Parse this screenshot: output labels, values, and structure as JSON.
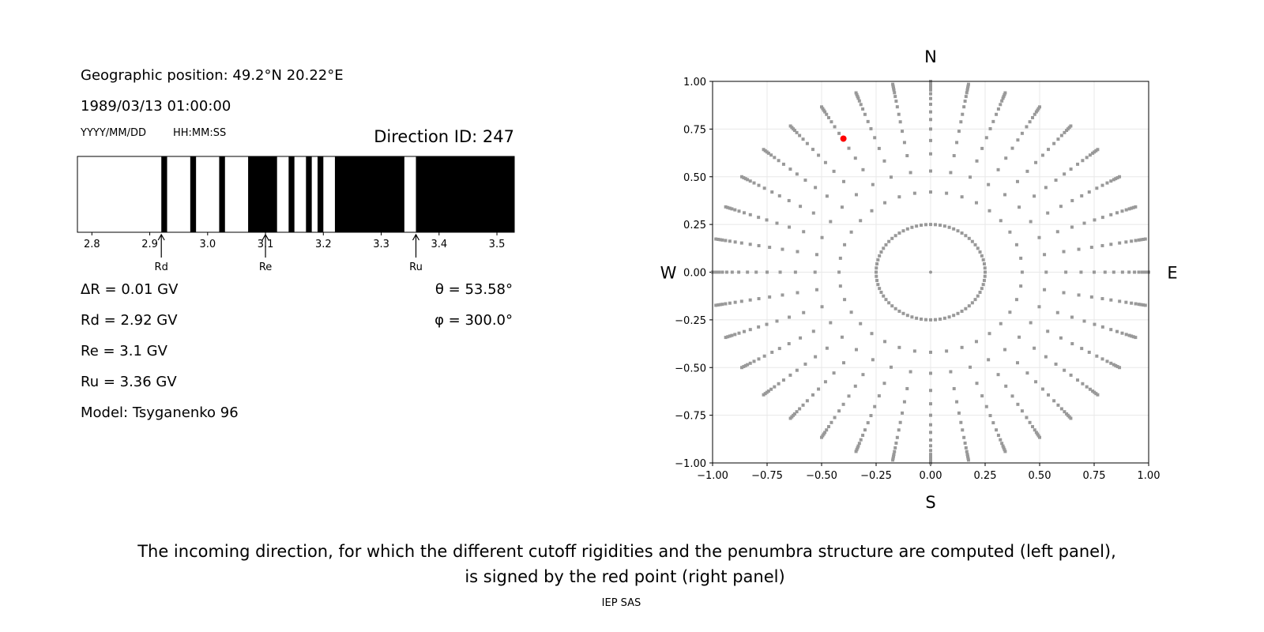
{
  "left_panel": {
    "geo_position": "Geographic position: 49.2°N 20.22°E",
    "datetime": "1989/03/13 01:00:00",
    "date_format": "YYYY/MM/DD",
    "time_format": "HH:MM:SS",
    "direction_id": "Direction ID: 247",
    "delta_r": "ΔR = 0.01 GV",
    "rd": "Rd = 2.92 GV",
    "re": "Re = 3.1 GV",
    "ru": "Ru = 3.36 GV",
    "model": "Model: Tsyganenko 96",
    "theta": "θ = 53.58°",
    "phi": "φ = 300.0°"
  },
  "chart_data": [
    {
      "type": "bar",
      "description_role": "penumbra",
      "xlim": [
        2.775,
        3.53
      ],
      "xticks": [
        2.8,
        2.9,
        3.0,
        3.1,
        3.2,
        3.3,
        3.4,
        3.5
      ],
      "xtick_labels": [
        "2.8",
        "2.9",
        "3.0",
        "3.1",
        "3.2",
        "3.3",
        "3.4",
        "3.5"
      ],
      "forbidden_intervals_GV": [
        [
          2.92,
          2.93
        ],
        [
          2.97,
          2.98
        ],
        [
          3.02,
          3.03
        ],
        [
          3.07,
          3.12
        ],
        [
          3.14,
          3.15
        ],
        [
          3.17,
          3.18
        ],
        [
          3.19,
          3.2
        ],
        [
          3.22,
          3.34
        ],
        [
          3.36,
          3.53
        ]
      ],
      "colors": {
        "allowed": "#ffffff",
        "forbidden": "#000000"
      },
      "markers": [
        {
          "label": "Rd",
          "value": 2.92
        },
        {
          "label": "Re",
          "value": 3.1
        },
        {
          "label": "Ru",
          "value": 3.36
        }
      ]
    },
    {
      "type": "scatter",
      "xlim": [
        -1,
        1
      ],
      "ylim": [
        -1,
        1
      ],
      "ticks": [
        -1,
        -0.75,
        -0.5,
        -0.25,
        0,
        0.25,
        0.5,
        0.75,
        1
      ],
      "tick_labels": [
        "−1.00",
        "−0.75",
        "−0.50",
        "−0.25",
        "0.00",
        "0.25",
        "0.50",
        "0.75",
        "1.00"
      ],
      "grid": true,
      "directions": {
        "top": "N",
        "bottom": "S",
        "left": "W",
        "right": "E"
      },
      "grid_points": {
        "center": [
          0,
          0
        ],
        "inner_ring_radius": 0.25,
        "ray_azimuth_step_deg": 10,
        "ray_radii": [
          0.25,
          0.42,
          0.53,
          0.62,
          0.69,
          0.75,
          0.8,
          0.84,
          0.88,
          0.91,
          0.935,
          0.955,
          0.97,
          0.98,
          0.99,
          1.0
        ],
        "color": "#999999"
      },
      "selected_point": {
        "x": -0.4,
        "y": 0.7,
        "color": "#ff0000"
      }
    }
  ],
  "caption": {
    "line1": "The incoming direction, for which the different cutoff rigidities and the penumbra structure are computed (left panel),",
    "line2": "is signed by the red point (right panel)"
  },
  "footer": "IEP SAS"
}
